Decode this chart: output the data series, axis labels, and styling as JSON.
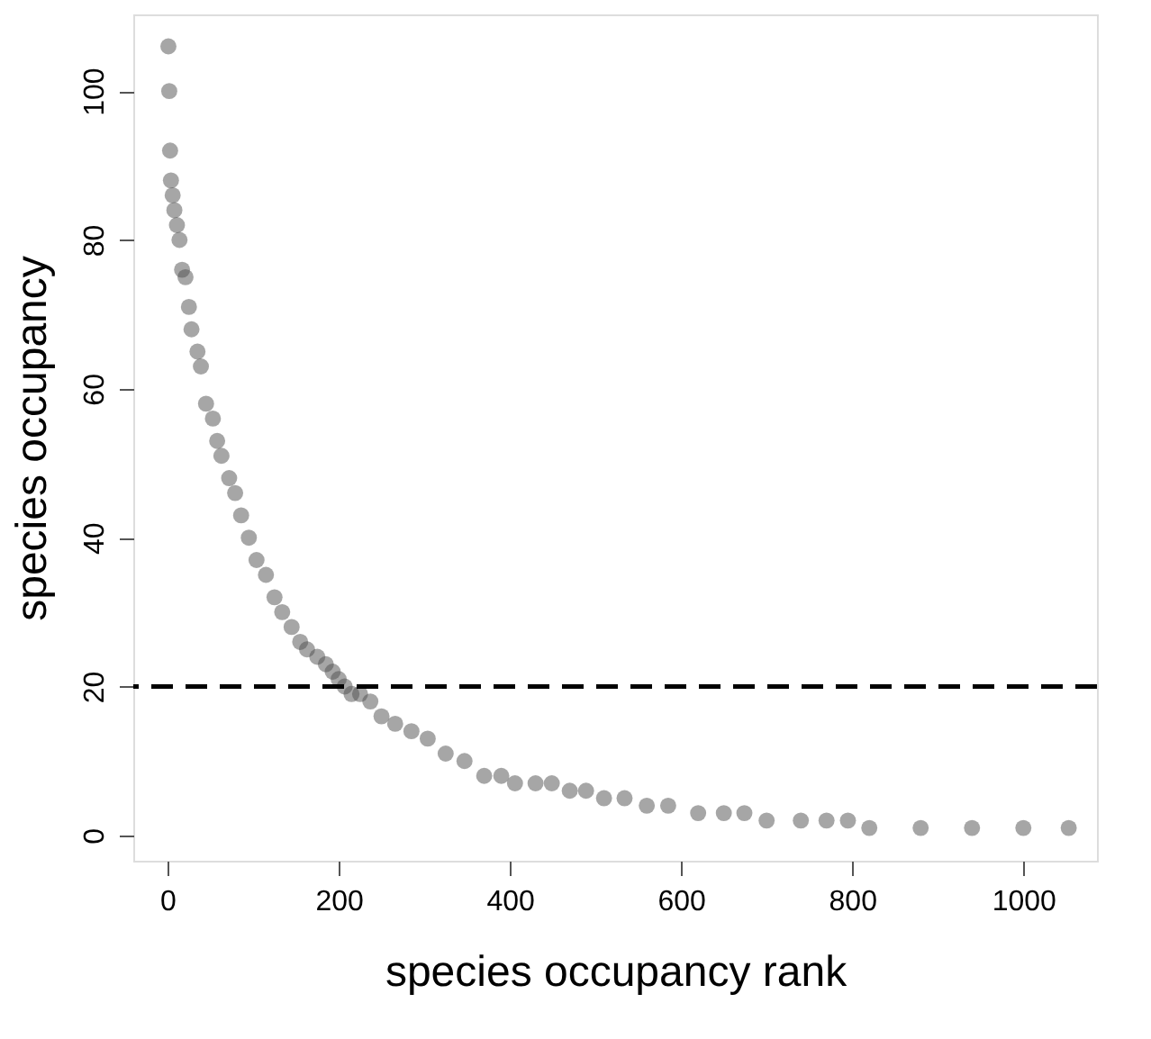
{
  "chart_data": {
    "type": "scatter",
    "xlabel": "species occupancy rank",
    "ylabel": "species occupancy",
    "x": [
      1,
      2,
      3,
      4,
      6,
      8,
      11,
      14,
      17,
      21,
      25,
      28,
      35,
      39,
      45,
      53,
      58,
      63,
      72,
      79,
      86,
      95,
      104,
      115,
      125,
      134,
      145,
      155,
      163,
      175,
      185,
      193,
      200,
      207,
      215,
      225,
      237,
      250,
      266,
      285,
      304,
      325,
      347,
      370,
      390,
      406,
      430,
      449,
      470,
      489,
      510,
      534,
      560,
      585,
      620,
      650,
      674,
      700,
      740,
      770,
      795,
      820,
      880,
      940,
      1000,
      1053
    ],
    "values": [
      106,
      100,
      92,
      88,
      86,
      84,
      82,
      80,
      76,
      75,
      71,
      68,
      65,
      63,
      58,
      56,
      53,
      51,
      48,
      46,
      43,
      40,
      37,
      35,
      32,
      30,
      28,
      26,
      25,
      24,
      23,
      22,
      21,
      20,
      19,
      19,
      18,
      16,
      15,
      14,
      13,
      11,
      10,
      8,
      8,
      7,
      7,
      7,
      6,
      6,
      5,
      5,
      4,
      4,
      3,
      3,
      3,
      2,
      2,
      2,
      2,
      1,
      1,
      1,
      1,
      1
    ],
    "color": "#4d4d4d",
    "marker": "circle",
    "xlim": [
      -40,
      1086
    ],
    "xticks": [
      0,
      200,
      400,
      600,
      800,
      1000
    ],
    "ylim": [
      -3.4,
      110.3
    ],
    "yticks": [
      0,
      20,
      40,
      60,
      80,
      100
    ],
    "ref_lines": [
      {
        "axis": "y",
        "value": 20,
        "color": "#000000",
        "line_style": "dashed"
      }
    ],
    "grid": false
  }
}
